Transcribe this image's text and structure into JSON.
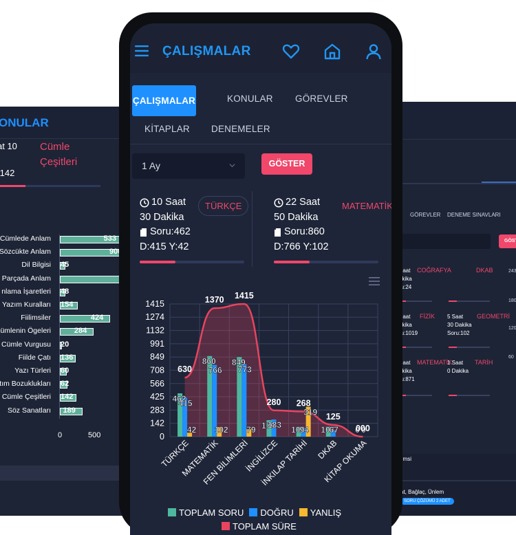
{
  "left_screen": {
    "title": "ONULAR",
    "card": {
      "line1": "at 10",
      "line2": "142",
      "line2_prefix": ":",
      "subject": "Cümle Çeşitleri",
      "progress": 0.25
    },
    "chart": {
      "categories": [
        "Cümlede Anlam",
        "Sözcükte Anlam",
        "Dil Bilgisi",
        "Parçada Anlam",
        "nlama İşaretleri",
        "Yazım Kuralları",
        "Fiilimsiler",
        "ümlenin Ögeleri",
        "Cümle Vurgusu",
        "Fiilde Çatı",
        "Yazı Türleri",
        "tım Bozuklukları",
        "Cümle Çeşitleri",
        "Söz Sanatları"
      ],
      "values": [
        533,
        906,
        45,
        1100,
        48,
        154,
        424,
        284,
        20,
        136,
        60,
        62,
        142,
        189
      ],
      "labels": [
        "533",
        "906",
        "45",
        "",
        "48",
        "154",
        "424",
        "284",
        "20",
        "136",
        "60",
        "62",
        "142",
        "189"
      ],
      "x_ticks": [
        "0",
        "500"
      ]
    }
  },
  "right_screen": {
    "tabs": [
      "GÖREVLER",
      "DENEME SINAVLARI"
    ],
    "button": "GÖST",
    "cards": [
      {
        "l1": "Saat",
        "l2": "akika",
        "l3": "ru:24",
        "subj": "COĞRAFYA",
        "subj2": "DKAB"
      },
      {
        "l1": "Saat",
        "l2": "akika",
        "l3": "ru:1019",
        "subj": "FİZİK",
        "l4": "5 Saat",
        "l5": "30 Dakika",
        "l6": "Soru:102",
        "subj2": "GEOMETRİ"
      },
      {
        "l1": "Saat",
        "l2": "akika",
        "l3": "ru:871",
        "subj": "MATEMATİK",
        "l4": "1 Saat",
        "l5": "0 Dakika",
        "subj2": "TARİH"
      }
    ],
    "axis": [
      "243",
      "180",
      "120",
      "60"
    ],
    "bottom_text1": "ilmsi",
    "bottom_text2": "at, Bağlaç, Ünlem",
    "bottom_badge": "SORU ÇÖZÜMÜ 2 ADET"
  },
  "app": {
    "title": "ÇALIŞMALAR",
    "icons": [
      "menu-icon",
      "heart-icon",
      "home-icon",
      "user-icon"
    ],
    "tabs": [
      "ÇALIŞMALAR",
      "KONULAR",
      "GÖREVLER",
      "KİTAPLAR",
      "DENEMELER"
    ],
    "active_tab": "ÇALIŞMALAR",
    "filter": {
      "value": "1 Ay",
      "button": "GÖSTER"
    },
    "cards": [
      {
        "time": "10 Saat",
        "minutes": "30 Dakika",
        "soru": "Soru:462",
        "dy": "D:415 Y:42",
        "subject": "TÜRKÇE",
        "progress": 0.34
      },
      {
        "time": "22 Saat",
        "minutes": "50 Dakika",
        "soru": "Soru:860",
        "dy": "D:766 Y:102",
        "subject": "MATEMATİK",
        "progress": 0.34
      }
    ],
    "colors": {
      "accent": "#1e90ff",
      "pink": "#f0476b",
      "teal": "#4db89e",
      "blue": "#1e90ff",
      "yellow": "#f7b731",
      "bg": "#1e2538"
    }
  },
  "chart_data": {
    "type": "bar",
    "categories": [
      "TÜRKÇE",
      "MATEMATİK",
      "FEN BİLİMLERİ",
      "İNGİLİZCE",
      "İNKILAP TARİHİ",
      "DKAB",
      "KİTAP OKUMA"
    ],
    "y_ticks": [
      "1415",
      "1274",
      "1132",
      "991",
      "849",
      "708",
      "566",
      "425",
      "283",
      "142",
      "0"
    ],
    "ylim": [
      0,
      1415
    ],
    "series": [
      {
        "name": "TOPLAM SORU",
        "color": "#4db89e",
        "values": [
          462,
          860,
          849,
          176,
          104,
          107,
          0
        ],
        "labels": [
          "462",
          "860",
          "849",
          "176",
          "104",
          "107",
          "0"
        ]
      },
      {
        "name": "DOĞRU",
        "color": "#1e90ff",
        "values": [
          415,
          766,
          773,
          183,
          94,
          67,
          0
        ],
        "labels": [
          "415",
          "766",
          "773",
          "183",
          "94",
          "67",
          "0"
        ]
      },
      {
        "name": "YANLIŞ",
        "color": "#f7b731",
        "values": [
          42,
          102,
          79,
          0,
          319,
          0,
          0
        ],
        "labels": [
          "42",
          "102",
          "79",
          "",
          "319",
          "",
          ""
        ]
      },
      {
        "name": "TOPLAM SÜRE",
        "color": "#e8445f",
        "type": "area",
        "values": [
          630,
          1370,
          1415,
          280,
          268,
          125,
          0
        ],
        "labels": [
          "630",
          "1370",
          "1415",
          "280",
          "268",
          "125",
          "000"
        ]
      }
    ],
    "legend": [
      "TOPLAM SORU",
      "DOĞRU",
      "YANLIŞ",
      "TOPLAM SÜRE"
    ],
    "legend_position": "bottom",
    "grid": true
  }
}
